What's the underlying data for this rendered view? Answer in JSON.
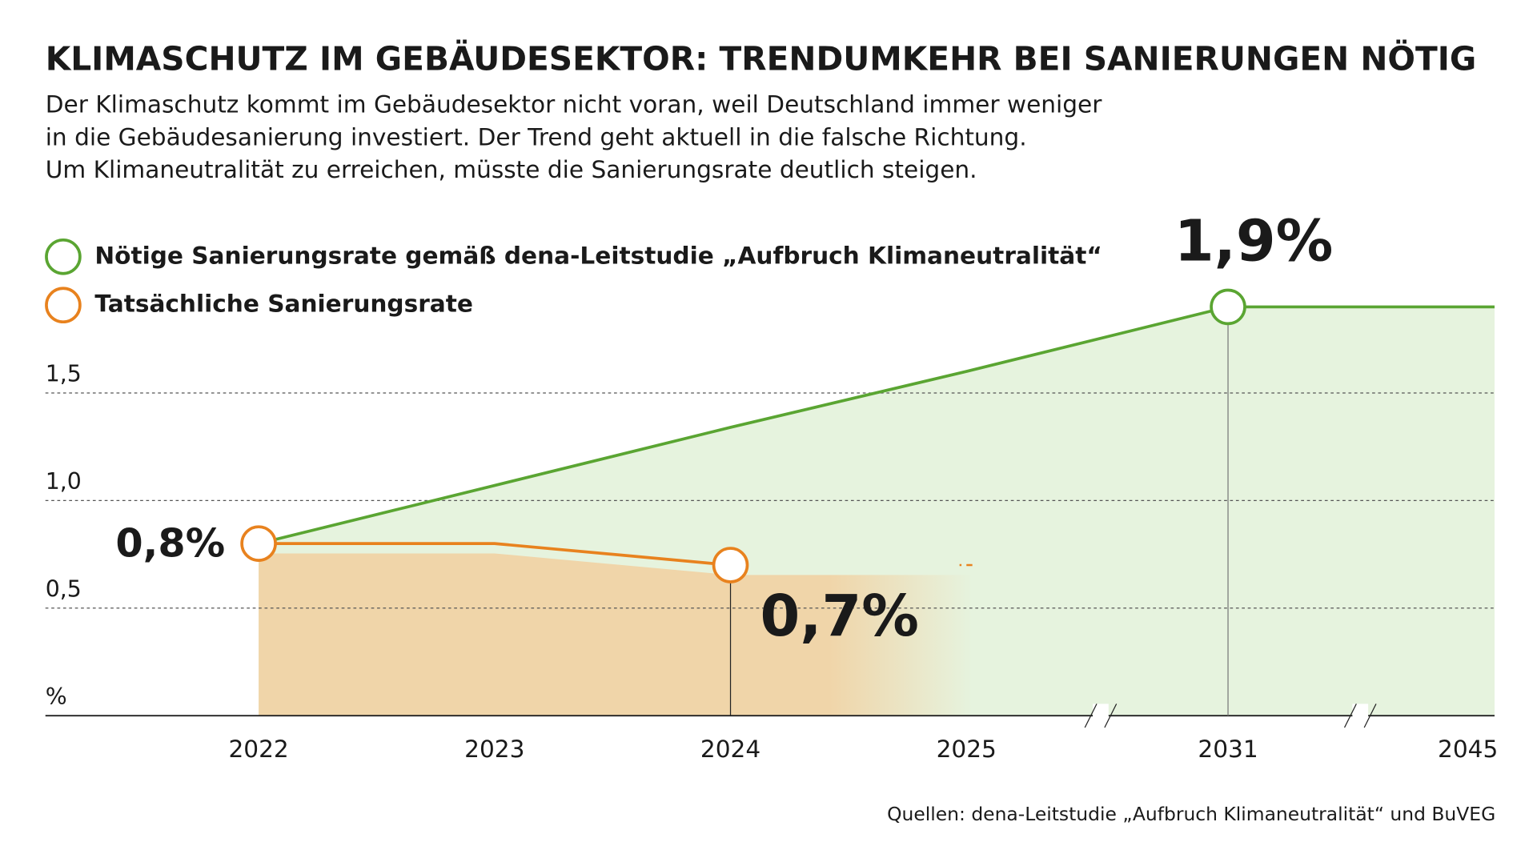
{
  "chart_data": {
    "type": "line",
    "title": "KLIMASCHUTZ IM GEBÄUDESEKTOR: TRENDUMKEHR BEI SANIERUNGEN NÖTIG",
    "subtitle": [
      "Der Klimaschutz kommt im Gebäudesektor nicht voran, weil Deutschland immer weniger",
      "in die Gebäudesanierung investiert. Der Trend geht aktuell in die falsche Richtung.",
      "Um Klimaneutralität zu erreichen, müsste die Sanierungsrate deutlich steigen."
    ],
    "categories": [
      "2022",
      "2023",
      "2024",
      "2025",
      "2031",
      "2045"
    ],
    "series": [
      {
        "name": "Nötige Sanierungsrate gemäß dena-Leitstudie „Aufbruch Klimaneutralität“",
        "color": "#5aa532",
        "values": [
          0.8,
          1.07,
          1.34,
          1.6,
          1.9,
          1.9
        ],
        "value_labels": [
          null,
          null,
          null,
          null,
          "1,9%",
          null
        ]
      },
      {
        "name": "Tatsächliche Sanierungsrate",
        "color": "#e8821e",
        "values": [
          0.8,
          0.8,
          0.7,
          null,
          null,
          null
        ],
        "value_labels": [
          "0,8%",
          null,
          "0,7%",
          null,
          null,
          null
        ]
      }
    ],
    "ylim": [
      0,
      2.0
    ],
    "yticks": [
      {
        "value": 0,
        "label": "%"
      },
      {
        "value": 0.5,
        "label": "0,5"
      },
      {
        "value": 1.0,
        "label": "1,0"
      },
      {
        "value": 1.5,
        "label": "1,5"
      }
    ],
    "grid": true,
    "source": "Quellen: dena-Leitstudie „Aufbruch Klimaneutralität“ und BuVEG"
  }
}
